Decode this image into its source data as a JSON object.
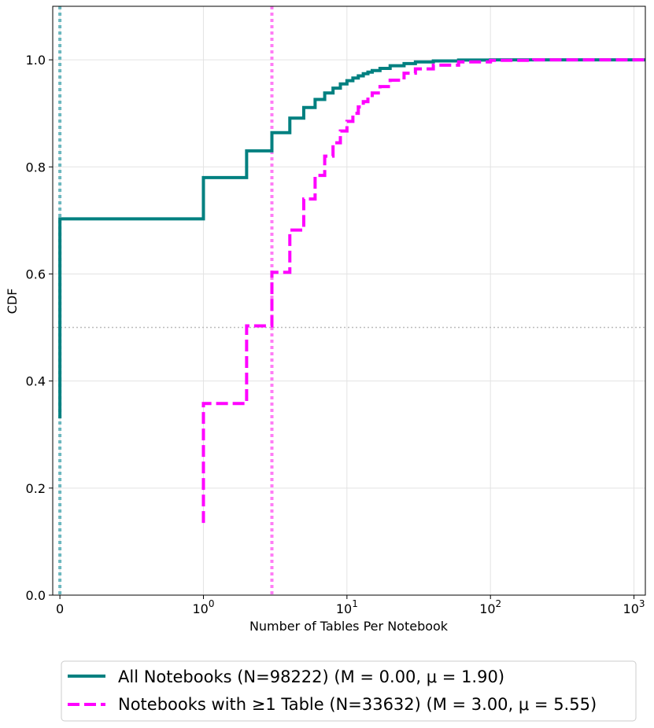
{
  "chart_data": {
    "type": "line",
    "subtype": "step-cdf",
    "title": "",
    "xlabel": "Number of Tables Per Notebook",
    "ylabel": "CDF",
    "xscale": "symlog",
    "xlim": [
      -0.05,
      1200
    ],
    "ylim": [
      0.0,
      1.1
    ],
    "grid": true,
    "legend_position": "below",
    "x_ticks": [
      {
        "value": 0,
        "base": "0",
        "exp": ""
      },
      {
        "value": 1,
        "base": "10",
        "exp": "0"
      },
      {
        "value": 10,
        "base": "10",
        "exp": "1"
      },
      {
        "value": 100,
        "base": "10",
        "exp": "2"
      },
      {
        "value": 1000,
        "base": "10",
        "exp": "3"
      }
    ],
    "y_ticks": [
      {
        "value": 0.0,
        "label": "0.0"
      },
      {
        "value": 0.2,
        "label": "0.2"
      },
      {
        "value": 0.4,
        "label": "0.4"
      },
      {
        "value": 0.6,
        "label": "0.6"
      },
      {
        "value": 0.8,
        "label": "0.8"
      },
      {
        "value": 1.0,
        "label": "1.0"
      }
    ],
    "reference_lines": [
      {
        "name": "median-all-line",
        "orientation": "vertical",
        "value": 0.0,
        "color": "#6cb8bf",
        "style": "dotted"
      },
      {
        "name": "median-ge1-line",
        "orientation": "vertical",
        "value": 3.0,
        "color": "#ff7cf5",
        "style": "dotted"
      },
      {
        "name": "half-cdf-line",
        "orientation": "horizontal",
        "value": 0.5,
        "color": "#bbbbbb",
        "style": "dotted"
      }
    ],
    "series": [
      {
        "name": "All Notebooks",
        "legend": "All Notebooks (N=98222) (M = 0.00, μ = 1.90)",
        "color": "#008080",
        "style": "solid",
        "points": [
          [
            0,
            0.33
          ],
          [
            0,
            0.703
          ],
          [
            1,
            0.703
          ],
          [
            1,
            0.78
          ],
          [
            2,
            0.78
          ],
          [
            2,
            0.83
          ],
          [
            3,
            0.83
          ],
          [
            3,
            0.864
          ],
          [
            4,
            0.864
          ],
          [
            4,
            0.891
          ],
          [
            5,
            0.891
          ],
          [
            5,
            0.911
          ],
          [
            6,
            0.911
          ],
          [
            6,
            0.926
          ],
          [
            7,
            0.926
          ],
          [
            7,
            0.938
          ],
          [
            8,
            0.938
          ],
          [
            8,
            0.947
          ],
          [
            9,
            0.947
          ],
          [
            9,
            0.955
          ],
          [
            10,
            0.955
          ],
          [
            10,
            0.961
          ],
          [
            11,
            0.961
          ],
          [
            11,
            0.966
          ],
          [
            12,
            0.966
          ],
          [
            12,
            0.97
          ],
          [
            13,
            0.97
          ],
          [
            13,
            0.974
          ],
          [
            14,
            0.974
          ],
          [
            14,
            0.977
          ],
          [
            15,
            0.977
          ],
          [
            15,
            0.98
          ],
          [
            17,
            0.98
          ],
          [
            17,
            0.984
          ],
          [
            20,
            0.984
          ],
          [
            20,
            0.989
          ],
          [
            25,
            0.989
          ],
          [
            25,
            0.993
          ],
          [
            30,
            0.993
          ],
          [
            30,
            0.996
          ],
          [
            40,
            0.996
          ],
          [
            40,
            0.998
          ],
          [
            60,
            0.998
          ],
          [
            60,
            0.9995
          ],
          [
            100,
            0.9995
          ],
          [
            100,
            1.0
          ],
          [
            1200,
            1.0
          ]
        ]
      },
      {
        "name": "Notebooks with ≥1 Table",
        "legend": "Notebooks with ≥1 Table (N=33632) (M = 3.00, μ = 5.55)",
        "color": "#ff00ff",
        "style": "dashed",
        "points": [
          [
            1,
            0.135
          ],
          [
            1,
            0.358
          ],
          [
            2,
            0.358
          ],
          [
            2,
            0.503
          ],
          [
            3,
            0.503
          ],
          [
            3,
            0.603
          ],
          [
            4,
            0.603
          ],
          [
            4,
            0.682
          ],
          [
            5,
            0.682
          ],
          [
            5,
            0.74
          ],
          [
            6,
            0.74
          ],
          [
            6,
            0.784
          ],
          [
            7,
            0.784
          ],
          [
            7,
            0.82
          ],
          [
            8,
            0.82
          ],
          [
            8,
            0.845
          ],
          [
            9,
            0.845
          ],
          [
            9,
            0.867
          ],
          [
            10,
            0.867
          ],
          [
            10,
            0.885
          ],
          [
            11,
            0.885
          ],
          [
            11,
            0.9
          ],
          [
            12,
            0.9
          ],
          [
            12,
            0.912
          ],
          [
            13,
            0.912
          ],
          [
            13,
            0.922
          ],
          [
            14,
            0.922
          ],
          [
            14,
            0.93
          ],
          [
            15,
            0.93
          ],
          [
            15,
            0.938
          ],
          [
            17,
            0.938
          ],
          [
            17,
            0.95
          ],
          [
            20,
            0.95
          ],
          [
            20,
            0.962
          ],
          [
            25,
            0.962
          ],
          [
            25,
            0.975
          ],
          [
            30,
            0.975
          ],
          [
            30,
            0.983
          ],
          [
            40,
            0.983
          ],
          [
            40,
            0.99
          ],
          [
            60,
            0.99
          ],
          [
            60,
            0.996
          ],
          [
            100,
            0.996
          ],
          [
            100,
            0.999
          ],
          [
            200,
            0.999
          ],
          [
            200,
            1.0
          ],
          [
            1200,
            1.0
          ]
        ]
      }
    ]
  }
}
